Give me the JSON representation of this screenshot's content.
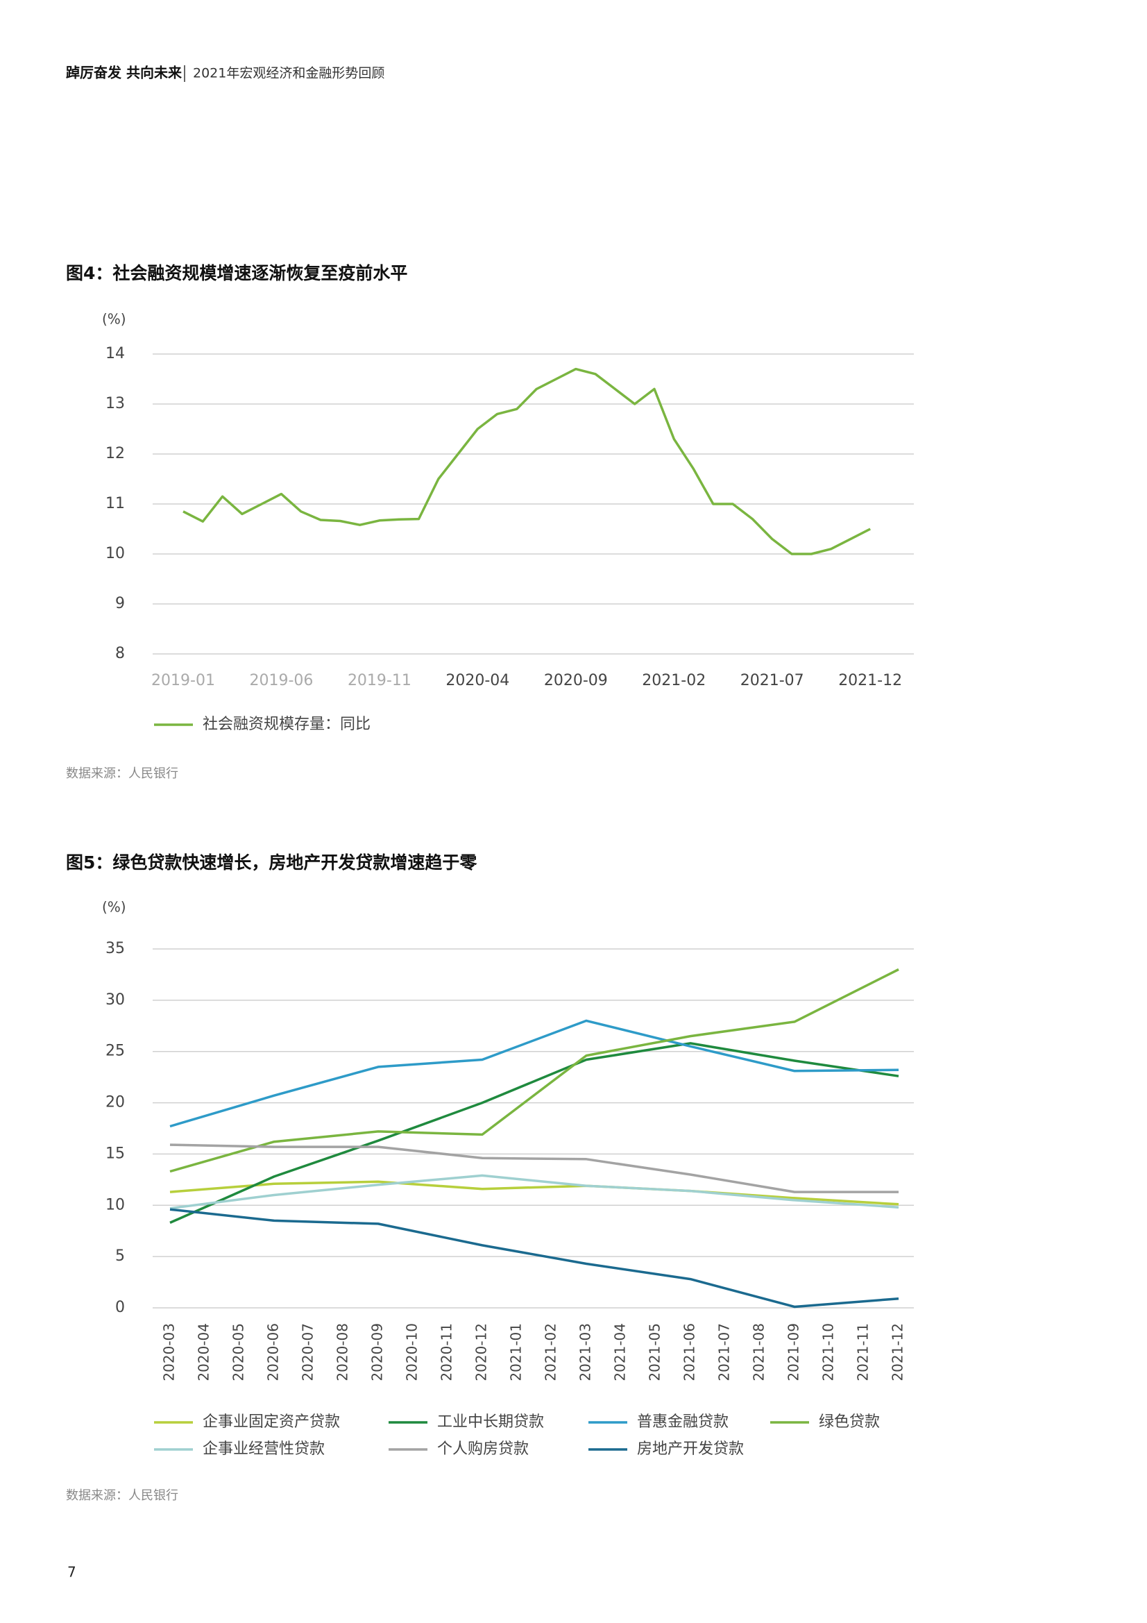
{
  "header": {
    "title": "踔厉奋发 共向未来",
    "subtitle": "2021年宏观经济和金融形势回顾"
  },
  "chart_data": [
    {
      "type": "line",
      "title": "图4：社会融资规模增速逐渐恢复至疫前水平",
      "y_label": "(%)",
      "source": "数据来源：人民银行",
      "categories": [
        "2019-01",
        null,
        null,
        null,
        null,
        "2019-06",
        null,
        null,
        null,
        null,
        "2019-11",
        null,
        null,
        null,
        null,
        "2020-04",
        null,
        null,
        null,
        null,
        "2020-09",
        null,
        null,
        null,
        null,
        "2021-02",
        null,
        null,
        null,
        null,
        "2021-07",
        null,
        null,
        null,
        null,
        "2021-12"
      ],
      "series": [
        {
          "name": "社会融资规模存量：同比",
          "color": "#7ab540",
          "values": [
            10.85,
            10.65,
            11.15,
            10.8,
            11.0,
            11.2,
            10.85,
            10.68,
            10.66,
            10.58,
            10.67,
            10.69,
            10.7,
            11.5,
            12.0,
            12.5,
            12.8,
            12.9,
            13.3,
            13.5,
            13.7,
            13.6,
            13.3,
            13.0,
            13.3,
            12.3,
            11.7,
            11.0,
            11.0,
            10.7,
            10.3,
            10.0,
            10.0,
            10.1,
            10.3,
            10.5
          ]
        }
      ],
      "ylim": [
        8,
        14
      ],
      "yticks": [
        8,
        9,
        10,
        11,
        12,
        13,
        14
      ],
      "grid": true
    },
    {
      "type": "line",
      "title": "图5：绿色贷款快速增长，房地产开发贷款增速趋于零",
      "y_label": "(%)",
      "source": "数据来源：人民银行",
      "categories": [
        "2020-03",
        "2020-04",
        "2020-05",
        "2020-06",
        "2020-07",
        "2020-08",
        "2020-09",
        "2020-10",
        "2020-11",
        "2020-12",
        "2021-01",
        "2021-02",
        "2021-03",
        "2021-04",
        "2021-05",
        "2021-06",
        "2021-07",
        "2021-08",
        "2021-09",
        "2021-10",
        "2021-11",
        "2021-12"
      ],
      "x": [
        "2020-03",
        "2020-06",
        "2020-09",
        "2020-12",
        "2021-03",
        "2021-06",
        "2021-09",
        "2021-12"
      ],
      "series": [
        {
          "name": "企事业固定资产贷款",
          "color": "#b7cf3c",
          "values": [
            11.3,
            12.1,
            12.3,
            11.6,
            11.9,
            11.4,
            10.7,
            10.1
          ]
        },
        {
          "name": "工业中长期贷款",
          "color": "#1f8a3e",
          "values": [
            8.3,
            12.8,
            16.3,
            20.0,
            24.2,
            25.8,
            24.1,
            22.6
          ]
        },
        {
          "name": "普惠金融贷款",
          "color": "#2e9bc8",
          "values": [
            17.7,
            20.7,
            23.5,
            24.2,
            28.0,
            25.5,
            23.1,
            23.2
          ]
        },
        {
          "name": "绿色贷款",
          "color": "#7ab540",
          "values": [
            13.3,
            16.2,
            17.2,
            16.9,
            24.6,
            26.5,
            27.9,
            33.0
          ]
        },
        {
          "name": "企事业经营性贷款",
          "color": "#9fd0d0",
          "values": [
            9.7,
            11.0,
            12.0,
            12.9,
            11.9,
            11.4,
            10.5,
            9.8
          ]
        },
        {
          "name": "个人购房贷款",
          "color": "#a3a3a3",
          "values": [
            15.9,
            15.7,
            15.7,
            14.6,
            14.5,
            13.0,
            11.3,
            11.3
          ]
        },
        {
          "name": "房地产开发贷款",
          "color": "#1b6a8f",
          "values": [
            9.6,
            8.5,
            8.2,
            6.1,
            4.3,
            2.8,
            0.1,
            0.9
          ]
        }
      ],
      "ylim": [
        0,
        35
      ],
      "yticks": [
        0,
        5,
        10,
        15,
        20,
        25,
        30,
        35
      ],
      "grid": true
    }
  ],
  "page_number": 7
}
